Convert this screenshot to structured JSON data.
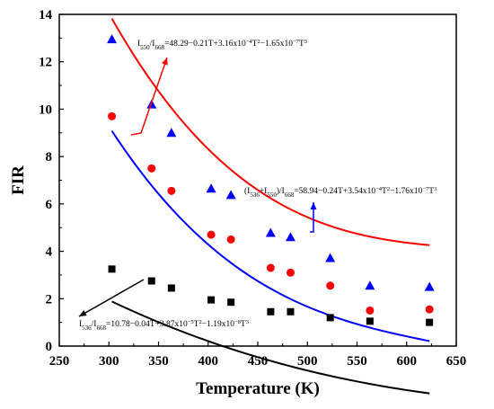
{
  "chart_data": {
    "type": "scatter",
    "xlabel": "Temperature (K)",
    "ylabel": "FIR",
    "xlim": [
      250,
      650
    ],
    "ylim": [
      0,
      14
    ],
    "x_ticks": [
      "250",
      "300",
      "350",
      "400",
      "450",
      "500",
      "550",
      "600",
      "650"
    ],
    "y_ticks": [
      "0",
      "2",
      "4",
      "6",
      "8",
      "10",
      "12",
      "14"
    ],
    "grid": false,
    "series": [
      {
        "color": "#0000ff",
        "marker": "triangle",
        "x": [
          303,
          343,
          363,
          403,
          423,
          463,
          483,
          523,
          563,
          623
        ],
        "y": [
          12.95,
          10.2,
          9.0,
          6.65,
          6.38,
          4.78,
          4.6,
          3.72,
          2.55,
          2.5
        ],
        "fit": {
          "a": 48.29,
          "b": -0.21,
          "c": 0.000316,
          "d": -1.65e-07
        }
      },
      {
        "color": "#ff0000",
        "marker": "circle",
        "x": [
          303,
          343,
          363,
          403,
          423,
          463,
          483,
          523,
          563,
          623
        ],
        "y": [
          9.7,
          7.5,
          6.55,
          4.7,
          4.5,
          3.3,
          3.1,
          2.55,
          1.5,
          1.55
        ],
        "fit": {
          "a": 58.94,
          "b": -0.24,
          "c": 0.000354,
          "d": -1.76e-07
        }
      },
      {
        "color": "#000000",
        "marker": "square",
        "x": [
          303,
          343,
          363,
          403,
          423,
          463,
          483,
          523,
          563,
          623
        ],
        "y": [
          3.25,
          2.75,
          2.45,
          1.95,
          1.85,
          1.45,
          1.45,
          1.2,
          1.05,
          1.0
        ],
        "fit": {
          "a": 10.78,
          "b": -0.04,
          "c": 3.87e-05,
          "d": -1.19e-08
        }
      }
    ],
    "annotations": [
      {
        "parts": [
          {
            "t": "I",
            "s": "n"
          },
          {
            "t": "550",
            "s": "sub"
          },
          {
            "t": "/I",
            "s": "n"
          },
          {
            "t": "668",
            "s": "sub"
          },
          {
            "t": "=48.29−0.21T+3.16x10",
            "s": "n"
          },
          {
            "t": "−4",
            "s": "sup"
          },
          {
            "t": "T",
            "s": "n"
          },
          {
            "t": "2",
            "s": "sup"
          },
          {
            "t": "−1.65x10",
            "s": "n"
          },
          {
            "t": "−7",
            "s": "sup"
          },
          {
            "t": "T",
            "s": "n"
          },
          {
            "t": "3",
            "s": "sup"
          }
        ]
      },
      {
        "parts": [
          {
            "t": "(I",
            "s": "n"
          },
          {
            "t": "536",
            "s": "sub"
          },
          {
            "t": "+I",
            "s": "n"
          },
          {
            "t": "550",
            "s": "sub"
          },
          {
            "t": ")/I",
            "s": "n"
          },
          {
            "t": "668",
            "s": "sub"
          },
          {
            "t": "=58.94−0.24T+3.54x10",
            "s": "n"
          },
          {
            "t": "−4",
            "s": "sup"
          },
          {
            "t": "T",
            "s": "n"
          },
          {
            "t": "2",
            "s": "sup"
          },
          {
            "t": "−1.76x10",
            "s": "n"
          },
          {
            "t": "−7",
            "s": "sup"
          },
          {
            "t": "T",
            "s": "n"
          },
          {
            "t": "3",
            "s": "sup"
          }
        ]
      },
      {
        "parts": [
          {
            "t": "I",
            "s": "n"
          },
          {
            "t": "536",
            "s": "sub"
          },
          {
            "t": "/I",
            "s": "n"
          },
          {
            "t": "668",
            "s": "sub"
          },
          {
            "t": "=10.78−0.04T+3.87x10",
            "s": "n"
          },
          {
            "t": "−5",
            "s": "sup"
          },
          {
            "t": "T",
            "s": "n"
          },
          {
            "t": "2",
            "s": "sup"
          },
          {
            "t": "−1.19x10",
            "s": "n"
          },
          {
            "t": "−8",
            "s": "sup"
          },
          {
            "t": "T",
            "s": "n"
          },
          {
            "t": "3",
            "s": "sup"
          }
        ]
      }
    ]
  }
}
